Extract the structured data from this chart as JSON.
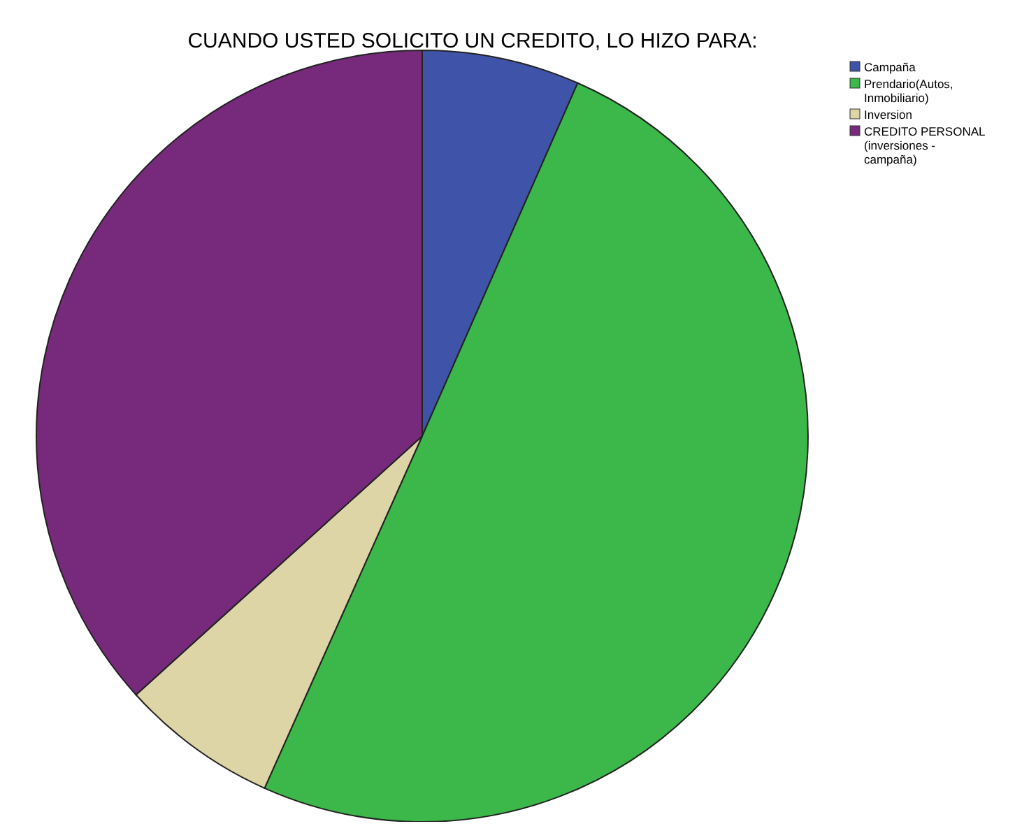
{
  "chart_data": {
    "type": "pie",
    "title": "CUANDO USTED SOLICITO UN CREDITO, LO HIZO PARA:",
    "categories": [
      "Campaña",
      "Prendario(Autos, Inmobiliario)",
      "Inversion",
      "CREDITO PERSONAL (inversiones - campaña)"
    ],
    "values": [
      6.6,
      50.1,
      6.6,
      36.7
    ],
    "colors": [
      "#3f54a8",
      "#3cb84a",
      "#ddd5a6",
      "#772a7c"
    ],
    "legend": "top right"
  }
}
